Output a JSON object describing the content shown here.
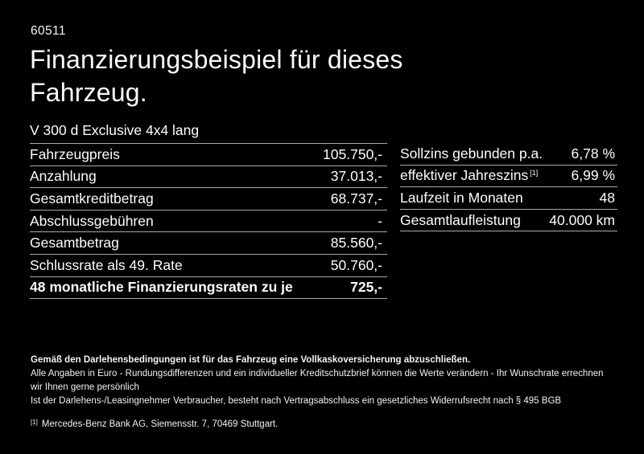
{
  "page": {
    "ref_number": "60511",
    "title": "Finanzierungsbeispiel für dieses\nFahrzeug.",
    "model": "V 300 d Exclusive 4x4 lang"
  },
  "left_table": {
    "rows": [
      {
        "label": "Fahrzeugpreis",
        "value": "105.750,-"
      },
      {
        "label": "Anzahlung",
        "value": "37.013,-"
      },
      {
        "label": "Gesamtkreditbetrag",
        "value": "68.737,-"
      },
      {
        "label": "Abschlussgebühren",
        "value": "-"
      },
      {
        "label": "Gesamtbetrag",
        "value": "85.560,-"
      },
      {
        "label": "Schlussrate als 49. Rate",
        "value": "50.760,-"
      },
      {
        "label": "48 monatliche Finanzierungsraten zu je",
        "value": "725,-"
      }
    ]
  },
  "right_table": {
    "rows": [
      {
        "label": "Sollzins gebunden p.a.",
        "value": "6,78 %"
      },
      {
        "label": "effektiver Jahreszins",
        "sup": "[1]",
        "value": "6,99 %"
      },
      {
        "label": "Laufzeit in Monaten",
        "value": "48"
      },
      {
        "label": "Gesamtlaufleistung",
        "value": "40.000 km"
      }
    ]
  },
  "footer": {
    "bold_note": "Gemäß den Darlehensbedingungen ist für das Fahrzeug eine Vollkaskoversicherung abzuschließen.",
    "note_line1": "Alle Angaben in Euro - Rundungsdifferenzen und ein individueller Kreditschutzbrief können die Werte verändern - Ihr Wunschrate errechnen wir Ihnen gerne persönlich",
    "note_line2": "Ist der Darlehens-/Leasingnehmer Verbraucher, besteht nach Vertragsabschluss ein gesetzliches Widerrufsrecht nach § 495 BGB",
    "footnote_marker": "[1]",
    "footnote_text": "Mercedes-Benz Bank AG, Siemensstr. 7, 70469 Stuttgart."
  },
  "colors": {
    "background": "#000000",
    "text": "#fdfdfd",
    "divider": "#a9a9a9"
  }
}
